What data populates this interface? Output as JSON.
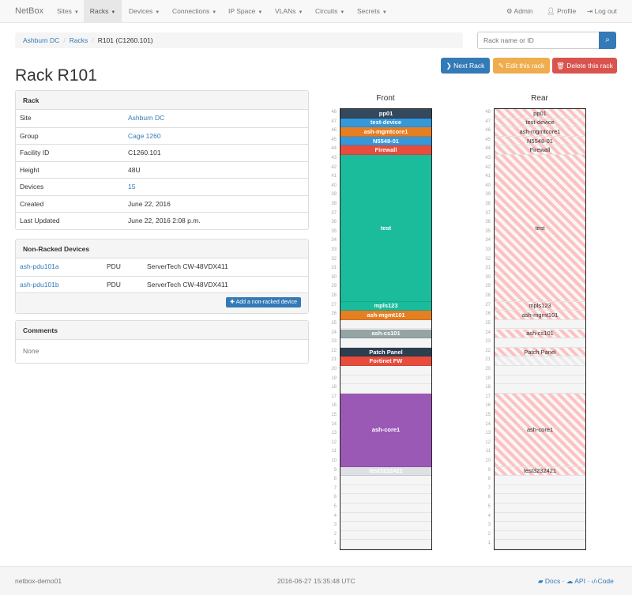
{
  "navbar": {
    "brand": "NetBox",
    "menus": [
      "Sites",
      "Racks",
      "Devices",
      "Connections",
      "IP Space",
      "VLANs",
      "Circuits",
      "Secrets"
    ],
    "active": "Racks",
    "admin": "Admin",
    "profile": "Profile",
    "logout": "Log out"
  },
  "breadcrumb": [
    "Ashburn DC",
    "Racks",
    "R101 (C1260.101)"
  ],
  "search": {
    "placeholder": "Rack name or ID"
  },
  "buttons": {
    "next": "Next Rack",
    "edit": "Edit this rack",
    "delete": "Delete this rack"
  },
  "title": "Rack R101",
  "rack_panel": {
    "heading": "Rack",
    "rows": [
      {
        "label": "Site",
        "value": "Ashburn DC",
        "link": true
      },
      {
        "label": "Group",
        "value": "Cage 1260",
        "link": true
      },
      {
        "label": "Facility ID",
        "value": "C1260.101"
      },
      {
        "label": "Height",
        "value": "48U"
      },
      {
        "label": "Devices",
        "value": "15",
        "link": true
      },
      {
        "label": "Created",
        "value": "June 22, 2016"
      },
      {
        "label": "Last Updated",
        "value": "June 22, 2016 2:08 p.m."
      }
    ]
  },
  "nonracked": {
    "heading": "Non-Racked Devices",
    "rows": [
      {
        "name": "ash-pdu101a",
        "role": "PDU",
        "type": "ServerTech CW-48VDX411"
      },
      {
        "name": "ash-pdu101b",
        "role": "PDU",
        "type": "ServerTech CW-48VDX411"
      }
    ],
    "add_label": "Add a non-racked device"
  },
  "comments": {
    "heading": "Comments",
    "text": "None"
  },
  "rack": {
    "front_label": "Front",
    "rear_label": "Rear",
    "units": 48,
    "devices": [
      {
        "name": "pp01",
        "position": 48,
        "height": 1,
        "color": "#34495e"
      },
      {
        "name": "test-device",
        "position": 47,
        "height": 1,
        "color": "#3498db"
      },
      {
        "name": "ash-mgmtcore1",
        "position": 46,
        "height": 1,
        "color": "#e67e22"
      },
      {
        "name": "N5548-01",
        "position": 45,
        "height": 1,
        "color": "#3498db"
      },
      {
        "name": "Firewall",
        "position": 44,
        "height": 1,
        "color": "#e74c3c"
      },
      {
        "name": "test",
        "position": 28,
        "height": 16,
        "color": "#1abc9c"
      },
      {
        "name": "mpls123",
        "position": 27,
        "height": 1,
        "color": "#1abc9c"
      },
      {
        "name": "ash-mgmt101",
        "position": 26,
        "height": 1,
        "color": "#e67e22"
      },
      {
        "name": "ash-cs101",
        "position": 24,
        "height": 1,
        "color": "#95a5a6"
      },
      {
        "name": "Patch Panel",
        "position": 22,
        "height": 1,
        "color": "#2c3e50"
      },
      {
        "name": "Fortinet FW",
        "position": 21,
        "height": 1,
        "color": "#e74c3c",
        "rear_hidden": true
      },
      {
        "name": "ash-core1",
        "position": 10,
        "height": 8,
        "color": "#9b59b6"
      },
      {
        "name": "test3232421",
        "position": 9,
        "height": 1,
        "color": "#dde1e4"
      }
    ]
  },
  "footer": {
    "hostname": "netbox-demo01",
    "timestamp": "2016-06-27 15:35:48 UTC",
    "docs": "Docs",
    "api": "API",
    "code": "Code"
  }
}
